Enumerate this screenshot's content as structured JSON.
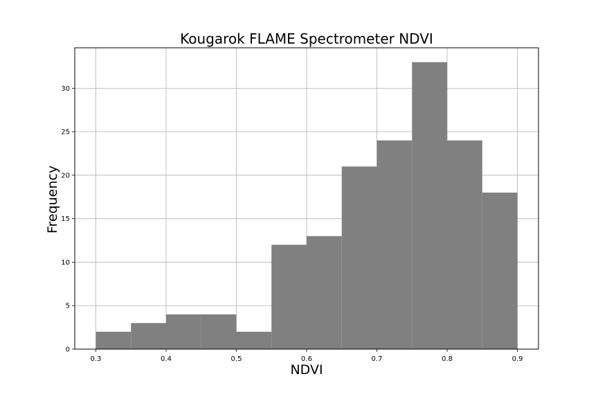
{
  "chart_data": {
    "type": "bar",
    "title": "Kougarok FLAME Spectrometer NDVI",
    "xlabel": "NDVI",
    "ylabel": "Frequency",
    "bins": [
      {
        "x0": 0.3,
        "x1": 0.35,
        "count": 2
      },
      {
        "x0": 0.35,
        "x1": 0.4,
        "count": 3
      },
      {
        "x0": 0.4,
        "x1": 0.45,
        "count": 4
      },
      {
        "x0": 0.45,
        "x1": 0.5,
        "count": 4
      },
      {
        "x0": 0.5,
        "x1": 0.55,
        "count": 2
      },
      {
        "x0": 0.55,
        "x1": 0.6,
        "count": 12
      },
      {
        "x0": 0.6,
        "x1": 0.65,
        "count": 13
      },
      {
        "x0": 0.65,
        "x1": 0.7,
        "count": 21
      },
      {
        "x0": 0.7,
        "x1": 0.75,
        "count": 24
      },
      {
        "x0": 0.75,
        "x1": 0.8,
        "count": 33
      },
      {
        "x0": 0.8,
        "x1": 0.85,
        "count": 24
      },
      {
        "x0": 0.85,
        "x1": 0.9,
        "count": 18
      }
    ],
    "xlim": [
      0.27,
      0.93
    ],
    "ylim": [
      0,
      34.65
    ],
    "xticks": [
      0.3,
      0.4,
      0.5,
      0.6,
      0.7,
      0.8,
      0.9
    ],
    "xtick_labels": [
      "0.3",
      "0.4",
      "0.5",
      "0.6",
      "0.7",
      "0.8",
      "0.9"
    ],
    "yticks": [
      0,
      5,
      10,
      15,
      20,
      25,
      30
    ],
    "ytick_labels": [
      "0",
      "5",
      "10",
      "15",
      "20",
      "25",
      "30"
    ],
    "grid": true,
    "bar_color": "#808080",
    "grid_color": "#b0b0b0"
  }
}
